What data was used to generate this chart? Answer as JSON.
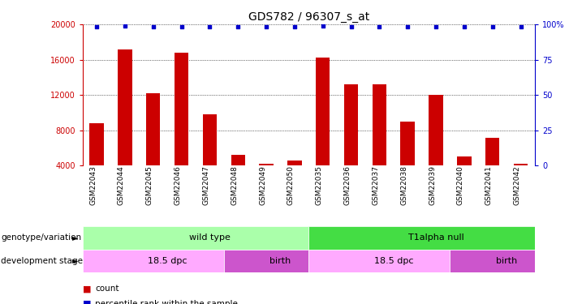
{
  "title": "GDS782 / 96307_s_at",
  "samples": [
    "GSM22043",
    "GSM22044",
    "GSM22045",
    "GSM22046",
    "GSM22047",
    "GSM22048",
    "GSM22049",
    "GSM22050",
    "GSM22035",
    "GSM22036",
    "GSM22037",
    "GSM22038",
    "GSM22039",
    "GSM22040",
    "GSM22041",
    "GSM22042"
  ],
  "counts": [
    8800,
    17200,
    12200,
    16800,
    9800,
    5200,
    4200,
    4600,
    16200,
    13200,
    13200,
    9000,
    12000,
    5000,
    7200,
    4200
  ],
  "percentile_ranks": [
    98,
    99,
    98,
    98,
    98,
    98,
    98,
    98,
    99,
    98,
    98,
    98,
    98,
    98,
    98,
    98
  ],
  "ylim_left": [
    4000,
    20000
  ],
  "ylim_right": [
    0,
    100
  ],
  "yticks_left": [
    4000,
    8000,
    12000,
    16000,
    20000
  ],
  "yticks_right": [
    0,
    25,
    50,
    75,
    100
  ],
  "bar_color": "#cc0000",
  "dot_color": "#0000cc",
  "genotype_groups": [
    {
      "label": "wild type",
      "start": 0,
      "end": 8,
      "color": "#aaffaa"
    },
    {
      "label": "T1alpha null",
      "start": 8,
      "end": 16,
      "color": "#44dd44"
    }
  ],
  "dev_stage_groups": [
    {
      "label": "18.5 dpc",
      "start": 0,
      "end": 5,
      "color": "#ffaaff"
    },
    {
      "label": "birth",
      "start": 5,
      "end": 8,
      "color": "#cc55cc"
    },
    {
      "label": "18.5 dpc",
      "start": 8,
      "end": 13,
      "color": "#ffaaff"
    },
    {
      "label": "birth",
      "start": 13,
      "end": 16,
      "color": "#cc55cc"
    }
  ],
  "legend_count_color": "#cc0000",
  "legend_percentile_color": "#0000cc",
  "title_fontsize": 10,
  "tick_label_fontsize": 7,
  "bar_label_fontsize": 6.5,
  "band_fontsize": 8,
  "row_label_fontsize": 7.5
}
